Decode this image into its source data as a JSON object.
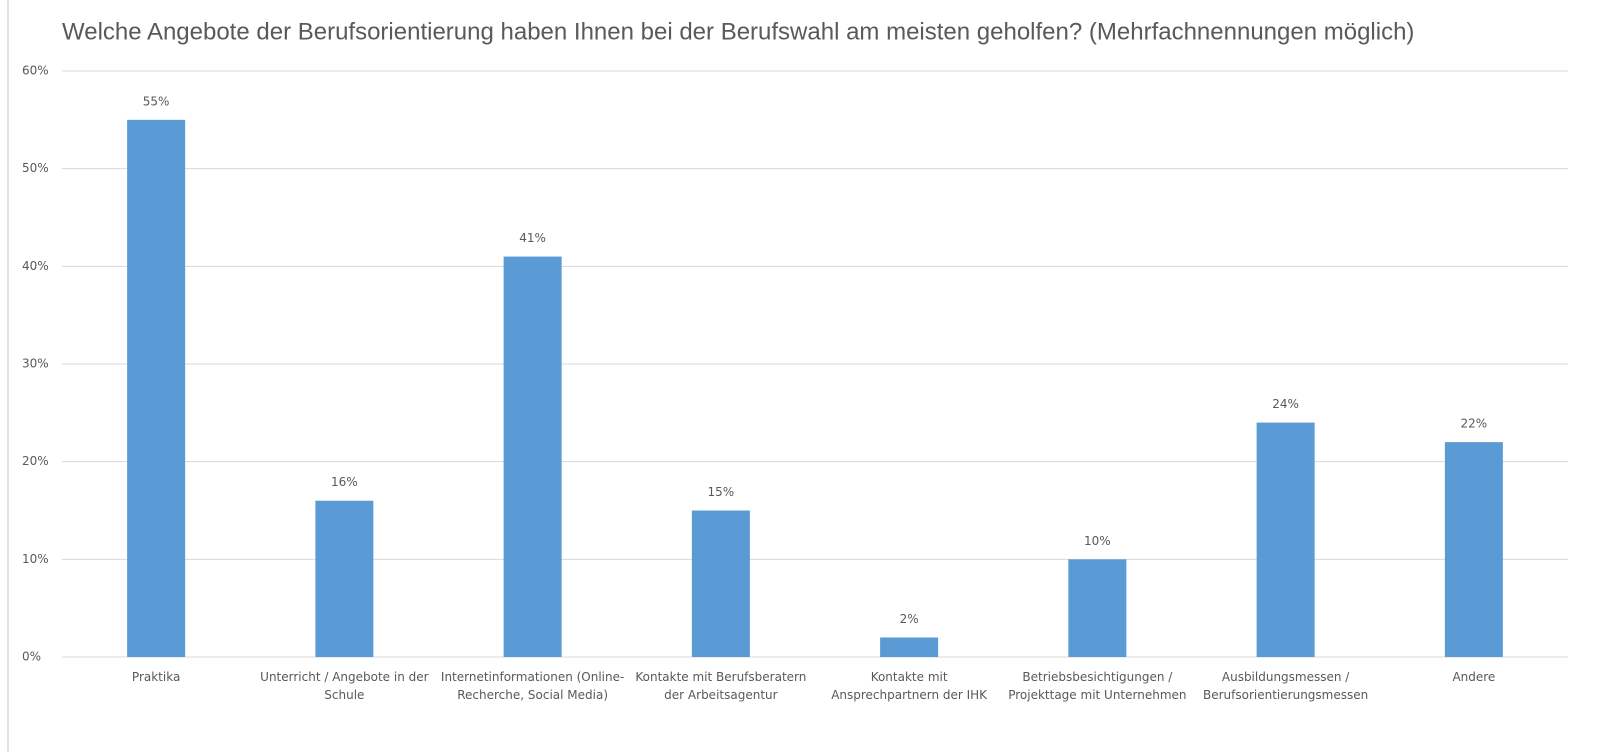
{
  "chart_data": {
    "type": "bar",
    "title": "Welche Angebote der Berufsorientierung haben Ihnen bei der Berufswahl am meisten geholfen? (Mehrfachnennungen möglich)",
    "categories": [
      "Praktika",
      "Unterricht / Angebote in der Schule",
      "Internetinformationen (Online-Recherche, Social Media)",
      "Kontakte mit Berufsberatern der Arbeitsagentur",
      "Kontakte mit Ansprechpartnern der IHK",
      "Betriebsbesichtigungen / Projekttage mit Unternehmen",
      "Ausbildungsmessen / Berufsorientierungsmessen",
      "Andere"
    ],
    "values": [
      55,
      16,
      41,
      15,
      2,
      10,
      24,
      22
    ],
    "value_labels": [
      "55%",
      "16%",
      "41%",
      "15%",
      "2%",
      "10%",
      "24%",
      "22%"
    ],
    "color": "#5b9bd5",
    "ylim": [
      0,
      60
    ],
    "yticks": [
      {
        "value": 0,
        "label": "0%"
      },
      {
        "value": 10,
        "label": "10%"
      },
      {
        "value": 20,
        "label": "20%"
      },
      {
        "value": 30,
        "label": "30%"
      },
      {
        "value": 40,
        "label": "40%"
      },
      {
        "value": 50,
        "label": "50%"
      },
      {
        "value": 60,
        "label": "60%"
      }
    ],
    "grid": true
  }
}
